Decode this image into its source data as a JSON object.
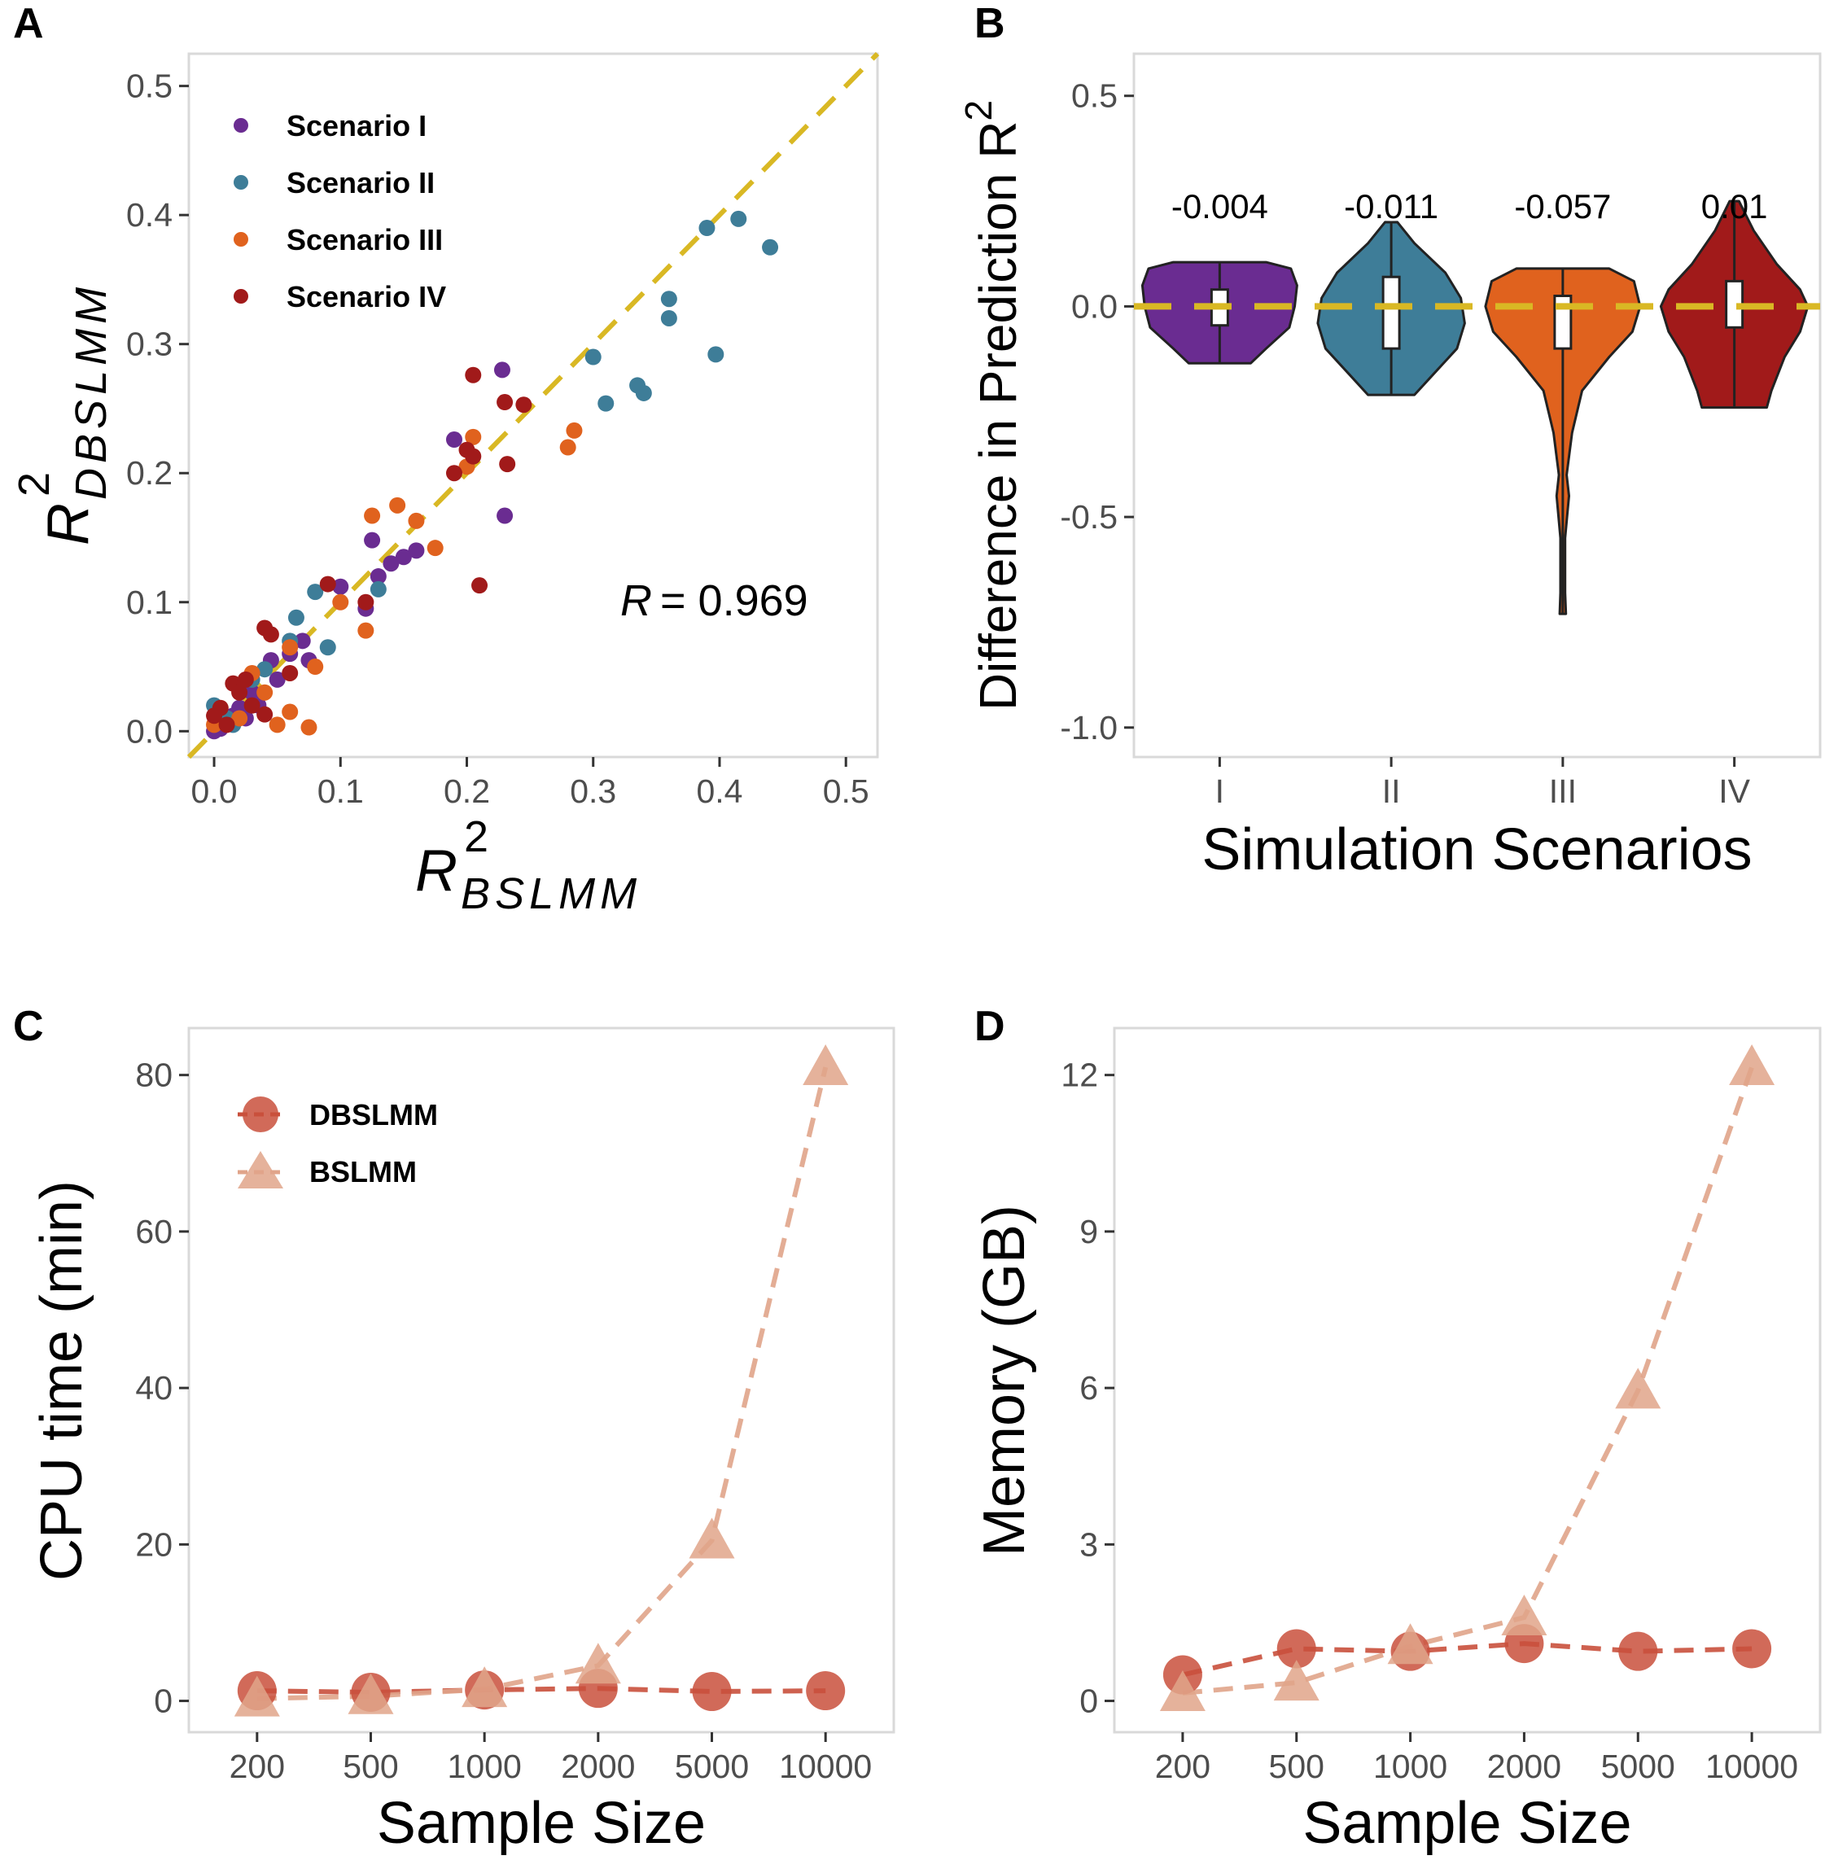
{
  "colors": {
    "scenario_I": "#6a2c91",
    "scenario_II": "#3e7d98",
    "scenario_III": "#e0621e",
    "scenario_IV": "#a11a1a",
    "reference_line": "#d9b824",
    "dbslmm": "#c9503c",
    "bslmm": "#e0a48a"
  },
  "chart_data": [
    {
      "panel": "A",
      "type": "scatter",
      "xlabel": "R",
      "xlabel_superscript": "2",
      "xlabel_subscript": "BSLMM",
      "ylabel": "R",
      "ylabel_superscript": "2",
      "ylabel_subscript": "DBSLMM",
      "xlim": [
        -0.02,
        0.525
      ],
      "ylim": [
        -0.02,
        0.525
      ],
      "x_ticks": [
        "0.0",
        "0.1",
        "0.2",
        "0.3",
        "0.4",
        "0.5"
      ],
      "y_ticks": [
        "0.0",
        "0.1",
        "0.2",
        "0.3",
        "0.4",
        "0.5"
      ],
      "annotation": "R",
      "annotation_value": "= 0.969",
      "legend_position": "top-left",
      "reference_line": "y = x",
      "series": [
        {
          "name": "Scenario I",
          "points": [
            [
              0.0,
              0.0
            ],
            [
              0.005,
              0.002
            ],
            [
              0.01,
              0.008
            ],
            [
              0.015,
              0.012
            ],
            [
              0.02,
              0.018
            ],
            [
              0.025,
              0.01
            ],
            [
              0.03,
              0.03
            ],
            [
              0.035,
              0.02
            ],
            [
              0.045,
              0.055
            ],
            [
              0.05,
              0.04
            ],
            [
              0.06,
              0.06
            ],
            [
              0.07,
              0.07
            ],
            [
              0.075,
              0.055
            ],
            [
              0.1,
              0.112
            ],
            [
              0.12,
              0.095
            ],
            [
              0.125,
              0.148
            ],
            [
              0.13,
              0.12
            ],
            [
              0.14,
              0.13
            ],
            [
              0.15,
              0.135
            ],
            [
              0.16,
              0.14
            ],
            [
              0.19,
              0.226
            ],
            [
              0.228,
              0.28
            ],
            [
              0.23,
              0.167
            ]
          ]
        },
        {
          "name": "Scenario II",
          "points": [
            [
              0.0,
              0.02
            ],
            [
              0.005,
              0.015
            ],
            [
              0.01,
              0.01
            ],
            [
              0.015,
              0.005
            ],
            [
              0.03,
              0.04
            ],
            [
              0.04,
              0.048
            ],
            [
              0.06,
              0.07
            ],
            [
              0.065,
              0.088
            ],
            [
              0.08,
              0.108
            ],
            [
              0.09,
              0.065
            ],
            [
              0.13,
              0.11
            ],
            [
              0.3,
              0.29
            ],
            [
              0.31,
              0.254
            ],
            [
              0.335,
              0.268
            ],
            [
              0.34,
              0.262
            ],
            [
              0.36,
              0.335
            ],
            [
              0.36,
              0.32
            ],
            [
              0.39,
              0.39
            ],
            [
              0.397,
              0.292
            ],
            [
              0.415,
              0.397
            ],
            [
              0.44,
              0.375
            ]
          ]
        },
        {
          "name": "Scenario III",
          "points": [
            [
              0.0,
              0.005
            ],
            [
              0.02,
              0.01
            ],
            [
              0.03,
              0.045
            ],
            [
              0.04,
              0.03
            ],
            [
              0.05,
              0.005
            ],
            [
              0.06,
              0.015
            ],
            [
              0.06,
              0.065
            ],
            [
              0.075,
              0.003
            ],
            [
              0.08,
              0.05
            ],
            [
              0.1,
              0.1
            ],
            [
              0.12,
              0.078
            ],
            [
              0.125,
              0.167
            ],
            [
              0.145,
              0.175
            ],
            [
              0.16,
              0.163
            ],
            [
              0.175,
              0.142
            ],
            [
              0.2,
              0.205
            ],
            [
              0.205,
              0.228
            ],
            [
              0.28,
              0.22
            ],
            [
              0.285,
              0.233
            ]
          ]
        },
        {
          "name": "Scenario IV",
          "points": [
            [
              0.0,
              0.012
            ],
            [
              0.005,
              0.018
            ],
            [
              0.01,
              0.005
            ],
            [
              0.015,
              0.037
            ],
            [
              0.02,
              0.03
            ],
            [
              0.025,
              0.04
            ],
            [
              0.03,
              0.02
            ],
            [
              0.04,
              0.013
            ],
            [
              0.04,
              0.08
            ],
            [
              0.045,
              0.075
            ],
            [
              0.06,
              0.045
            ],
            [
              0.09,
              0.114
            ],
            [
              0.12,
              0.1
            ],
            [
              0.19,
              0.2
            ],
            [
              0.2,
              0.218
            ],
            [
              0.205,
              0.213
            ],
            [
              0.205,
              0.276
            ],
            [
              0.21,
              0.113
            ],
            [
              0.23,
              0.255
            ],
            [
              0.232,
              0.207
            ],
            [
              0.245,
              0.253
            ]
          ]
        }
      ]
    },
    {
      "panel": "B",
      "type": "violin",
      "xlabel": "Simulation Scenarios",
      "ylabel": "Difference in Prediction R",
      "ylabel_superscript": "2",
      "categories": [
        "I",
        "II",
        "III",
        "IV"
      ],
      "ylim": [
        -1.07,
        0.6
      ],
      "y_ticks": [
        "0.5",
        "0.0",
        "-0.5",
        "-1.0"
      ],
      "reference_line": "y = 0",
      "median_labels": [
        "-0.004",
        "-0.011",
        "-0.057",
        "0.01"
      ],
      "distributions": [
        {
          "name": "I",
          "min": -0.135,
          "q1": -0.045,
          "median": -0.004,
          "q3": 0.04,
          "max": 0.105
        },
        {
          "name": "II",
          "min": -0.21,
          "q1": -0.1,
          "median": -0.011,
          "q3": 0.07,
          "max": 0.2
        },
        {
          "name": "III",
          "min": -0.73,
          "q1": -0.1,
          "median": -0.057,
          "q3": 0.025,
          "max": 0.09
        },
        {
          "name": "IV",
          "min": -0.24,
          "q1": -0.05,
          "median": 0.01,
          "q3": 0.06,
          "max": 0.25
        }
      ]
    },
    {
      "panel": "C",
      "type": "line",
      "xlabel": "Sample Size",
      "ylabel": "CPU time (min)",
      "categories": [
        "200",
        "500",
        "1000",
        "2000",
        "5000",
        "10000"
      ],
      "ylim": [
        -4,
        86
      ],
      "y_ticks": [
        0,
        20,
        40,
        60,
        80
      ],
      "legend_position": "top-left",
      "series": [
        {
          "name": "DBSLMM",
          "values": [
            1.3,
            1.1,
            1.4,
            1.6,
            1.2,
            1.3
          ]
        },
        {
          "name": "BSLMM",
          "values": [
            0.3,
            0.6,
            1.5,
            4.5,
            20.5,
            81.0
          ]
        }
      ]
    },
    {
      "panel": "D",
      "type": "line",
      "xlabel": "Sample Size",
      "ylabel": "Memory (GB)",
      "categories": [
        "200",
        "500",
        "1000",
        "2000",
        "5000",
        "10000"
      ],
      "ylim": [
        -0.6,
        12.9
      ],
      "y_ticks": [
        0,
        3,
        6,
        9,
        12
      ],
      "series": [
        {
          "name": "DBSLMM",
          "values": [
            0.5,
            1.0,
            0.95,
            1.1,
            0.95,
            1.0
          ]
        },
        {
          "name": "BSLMM",
          "values": [
            0.15,
            0.35,
            1.05,
            1.6,
            5.95,
            12.15
          ]
        }
      ]
    }
  ],
  "panels": {
    "A": {
      "letter": "A"
    },
    "B": {
      "letter": "B"
    },
    "C": {
      "letter": "C"
    },
    "D": {
      "letter": "D"
    }
  }
}
